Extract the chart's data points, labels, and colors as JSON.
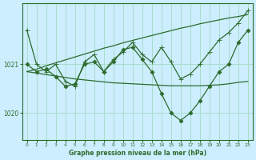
{
  "title": "Graphe pression niveau de la mer (hPa)",
  "bg_color": "#cceeff",
  "grid_color": "#aaddcc",
  "line_color": "#2d6b2d",
  "x_ticks": [
    0,
    1,
    2,
    3,
    4,
    5,
    6,
    7,
    8,
    9,
    10,
    11,
    12,
    13,
    14,
    15,
    16,
    17,
    18,
    19,
    20,
    21,
    22,
    23
  ],
  "ylim": [
    1019.45,
    1022.25
  ],
  "yticks": [
    1020,
    1021
  ],
  "series": [
    {
      "y": [
        1021.7,
        1021.0,
        1020.85,
        1021.0,
        1020.65,
        1020.55,
        1021.05,
        1021.2,
        1020.85,
        1021.1,
        1021.25,
        1021.45,
        1021.2,
        1021.05,
        1021.35,
        1021.05,
        1020.7,
        1020.8,
        1021.0,
        1021.25,
        1021.5,
        1021.65,
        1021.85,
        1022.1
      ],
      "marker": "+",
      "ms": 4,
      "lw": 0.9
    },
    {
      "y": [
        1021.0,
        1020.85,
        1020.9,
        1020.75,
        1020.55,
        1020.6,
        1021.0,
        1021.05,
        1020.85,
        1021.05,
        1021.3,
        1021.35,
        1021.1,
        1020.85,
        1020.4,
        1020.0,
        1019.85,
        1020.0,
        1020.25,
        1020.55,
        1020.85,
        1021.0,
        1021.45,
        1021.7
      ],
      "marker": "D",
      "ms": 2.5,
      "lw": 0.9
    },
    {
      "y": [
        1020.85,
        1020.82,
        1020.79,
        1020.76,
        1020.73,
        1020.7,
        1020.68,
        1020.66,
        1020.64,
        1020.62,
        1020.61,
        1020.6,
        1020.59,
        1020.58,
        1020.57,
        1020.56,
        1020.56,
        1020.56,
        1020.56,
        1020.57,
        1020.58,
        1020.6,
        1020.63,
        1020.65
      ],
      "marker": null,
      "ms": null,
      "lw": 0.9
    },
    {
      "y": [
        1020.85,
        1020.9,
        1020.97,
        1021.03,
        1021.09,
        1021.15,
        1021.21,
        1021.27,
        1021.33,
        1021.38,
        1021.44,
        1021.49,
        1021.54,
        1021.59,
        1021.64,
        1021.69,
        1021.74,
        1021.78,
        1021.83,
        1021.87,
        1021.91,
        1021.95,
        1021.98,
        1022.02
      ],
      "marker": null,
      "ms": null,
      "lw": 0.9
    }
  ]
}
